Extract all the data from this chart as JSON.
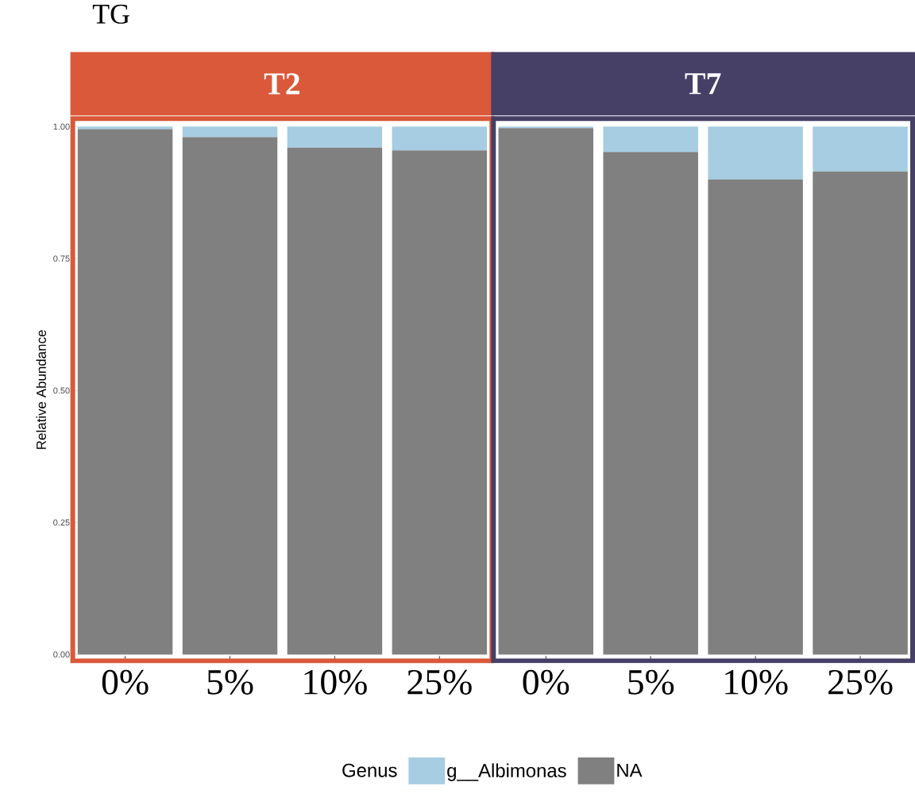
{
  "chart_data": [
    {
      "type": "bar",
      "stacked": true,
      "title": "T2",
      "ylabel": "Relative Abundance",
      "legend_title": "Genus",
      "legend": "bottom",
      "annotations": [
        "TG"
      ],
      "categories": [
        "0%",
        "5%",
        "10%",
        "25%"
      ],
      "series": [
        {
          "name": "NA",
          "color": "#808080",
          "values": [
            0.995,
            0.98,
            0.96,
            0.955
          ]
        },
        {
          "name": "g__Albimonas",
          "color": "#a6cde2",
          "values": [
            0.005,
            0.02,
            0.04,
            0.045
          ]
        }
      ],
      "ylim": [
        -0.012,
        1.015
      ],
      "yticks": [
        {
          "value": 0,
          "label": "0.00"
        },
        {
          "value": 0.25,
          "label": "0.25"
        },
        {
          "value": 0.5,
          "label": "0.50"
        },
        {
          "value": 0.75,
          "label": "0.75"
        },
        {
          "value": 1,
          "label": "1.00"
        }
      ]
    },
    {
      "type": "bar",
      "stacked": true,
      "title": "T7",
      "tick_labels": "x",
      "ylim": [
        -0.012,
        1.015
      ],
      "categories": [
        "0%",
        "5%",
        "10%",
        "25%"
      ],
      "series": [
        {
          "color": "#808080",
          "values": [
            0.997,
            0.952,
            0.9,
            0.915
          ]
        },
        {
          "color": "#a6cde2",
          "values": [
            0.003,
            0.048,
            0.1,
            0.085
          ]
        }
      ]
    }
  ]
}
